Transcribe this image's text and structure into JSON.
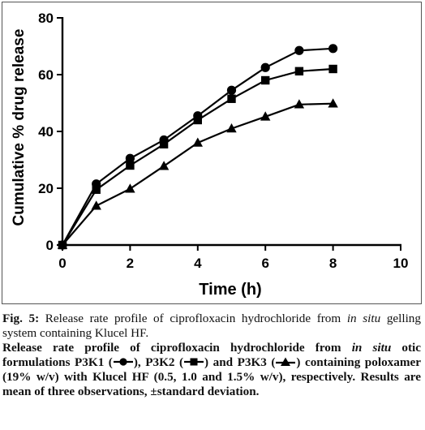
{
  "chart_data": {
    "type": "line",
    "title": "",
    "xlabel": "Time (h)",
    "ylabel": "Cumulative % drug release",
    "xlim": [
      0,
      10
    ],
    "ylim": [
      0,
      80
    ],
    "xticks": [
      0,
      2,
      4,
      6,
      8,
      10
    ],
    "yticks": [
      0,
      20,
      40,
      60,
      80
    ],
    "grid": false,
    "x": [
      0,
      1,
      2,
      3,
      4,
      5,
      6,
      7,
      8
    ],
    "series": [
      {
        "marker": "circle",
        "color": "#000000",
        "values": [
          0,
          21.5,
          30.5,
          37,
          45.5,
          54.5,
          62.5,
          68.5,
          69.2
        ]
      },
      {
        "marker": "square",
        "color": "#000000",
        "values": [
          0,
          19.5,
          28,
          35.5,
          44,
          51.5,
          58,
          61.2,
          62
        ]
      },
      {
        "marker": "triangle",
        "color": "#000000",
        "values": [
          0,
          13.8,
          19.8,
          27.8,
          36,
          41,
          45.2,
          49.5,
          49.8
        ]
      }
    ]
  },
  "caption": {
    "fig_label": "Fig. 5:",
    "title_part1": "Release rate profile of ciprofloxacin hydrochloride from",
    "title_italic": "in situ",
    "title_part2": "gelling system containing Klucel HF.",
    "body_part1": "Release rate profile of ciprofloxacin hydrochloride from",
    "body_italic": "in situ",
    "body_part2": "otic formulations P3K1 (",
    "body_part3": "), P3K2 (",
    "body_part4": ") and P3K3 (",
    "body_part5": ") containing poloxamer (19% w/v) with Klucel HF (0.5, 1.0 and 1.5% w/v), respectively. Results are mean of three observations, ±standard deviation."
  }
}
